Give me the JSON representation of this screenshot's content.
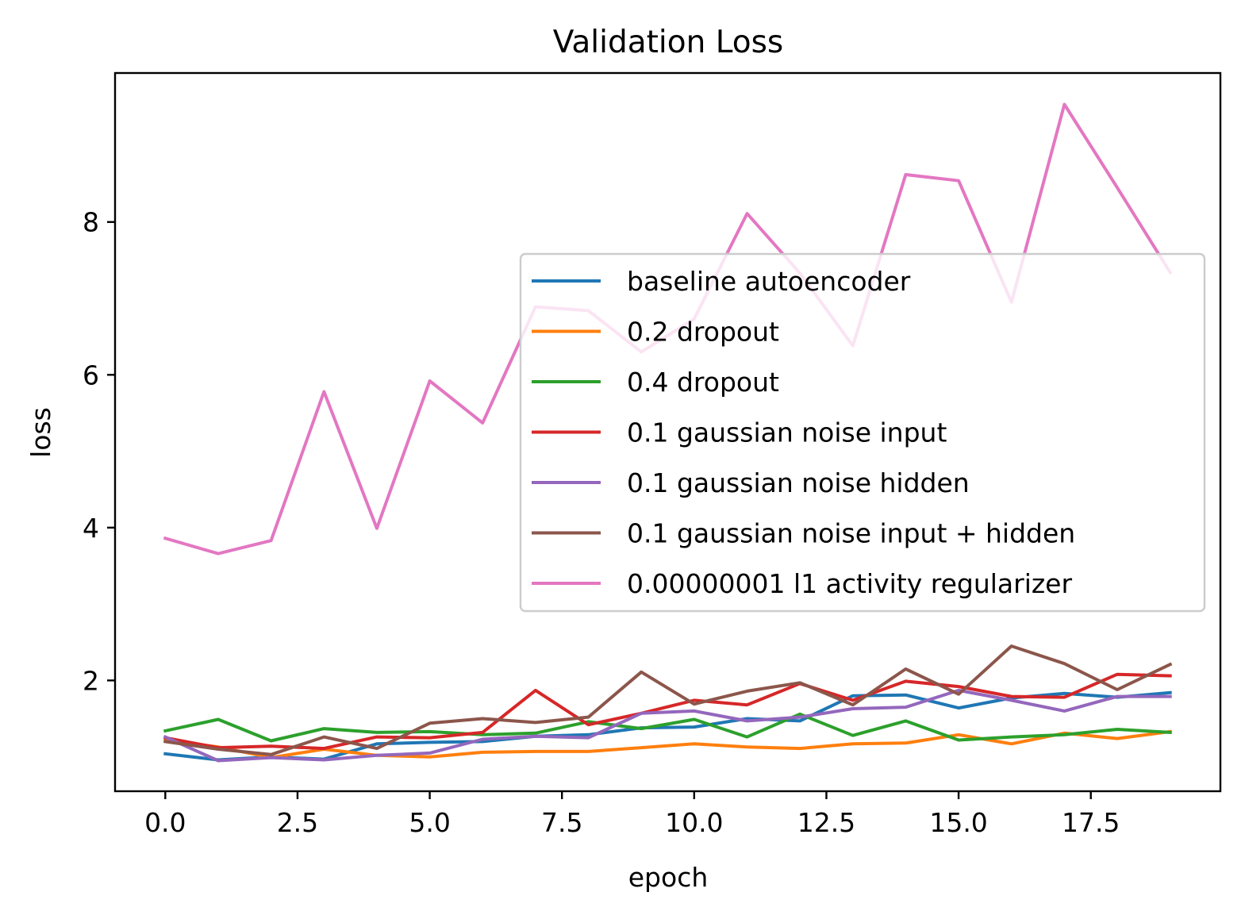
{
  "chart_data": {
    "type": "line",
    "title": "Validation Loss",
    "xlabel": "epoch",
    "ylabel": "loss",
    "xlim": [
      -0.95,
      19.95
    ],
    "ylim": [
      0.55,
      9.95
    ],
    "xticks": [
      0.0,
      2.5,
      5.0,
      7.5,
      10.0,
      12.5,
      15.0,
      17.5
    ],
    "xtick_labels": [
      "0.0",
      "2.5",
      "5.0",
      "7.5",
      "10.0",
      "12.5",
      "15.0",
      "17.5"
    ],
    "yticks": [
      2,
      4,
      6,
      8
    ],
    "ytick_labels": [
      "2",
      "4",
      "6",
      "8"
    ],
    "grid": false,
    "legend_position": "center-right",
    "x": [
      0,
      1,
      2,
      3,
      4,
      5,
      6,
      7,
      8,
      9,
      10,
      11,
      12,
      13,
      14,
      15,
      16,
      17,
      18,
      19
    ],
    "series": [
      {
        "name": "baseline autoencoder",
        "color": "#1f77b4",
        "values": [
          1.04,
          0.96,
          1.0,
          0.97,
          1.17,
          1.19,
          1.2,
          1.27,
          1.29,
          1.38,
          1.39,
          1.5,
          1.47,
          1.8,
          1.81,
          1.64,
          1.77,
          1.83,
          1.78,
          1.84
        ]
      },
      {
        "name": "0.2 dropout",
        "color": "#ff7f0e",
        "values": [
          1.22,
          1.13,
          0.99,
          1.1,
          1.02,
          1.0,
          1.06,
          1.07,
          1.07,
          1.12,
          1.17,
          1.13,
          1.11,
          1.17,
          1.18,
          1.29,
          1.17,
          1.31,
          1.24,
          1.33
        ]
      },
      {
        "name": "0.4 dropout",
        "color": "#2ca02c",
        "values": [
          1.34,
          1.49,
          1.21,
          1.37,
          1.32,
          1.33,
          1.29,
          1.31,
          1.46,
          1.37,
          1.49,
          1.26,
          1.56,
          1.28,
          1.47,
          1.22,
          1.26,
          1.29,
          1.36,
          1.32
        ]
      },
      {
        "name": "0.1 gaussian noise input",
        "color": "#d62728",
        "values": [
          1.25,
          1.12,
          1.14,
          1.11,
          1.26,
          1.25,
          1.32,
          1.87,
          1.42,
          1.57,
          1.74,
          1.68,
          1.96,
          1.74,
          1.99,
          1.92,
          1.79,
          1.78,
          2.08,
          2.06
        ]
      },
      {
        "name": "0.1 gaussian noise hidden",
        "color": "#9467bd",
        "values": [
          1.26,
          0.95,
          0.99,
          0.96,
          1.02,
          1.05,
          1.23,
          1.27,
          1.25,
          1.57,
          1.6,
          1.47,
          1.52,
          1.63,
          1.65,
          1.87,
          1.74,
          1.6,
          1.79,
          1.79
        ]
      },
      {
        "name": "0.1 gaussian noise input + hidden",
        "color": "#8c564b",
        "values": [
          1.2,
          1.1,
          1.03,
          1.26,
          1.11,
          1.44,
          1.5,
          1.45,
          1.52,
          2.11,
          1.69,
          1.86,
          1.97,
          1.68,
          2.15,
          1.82,
          2.45,
          2.22,
          1.88,
          2.21
        ]
      },
      {
        "name": "0.00000001 l1 activity regularizer",
        "color": "#e377c2",
        "values": [
          3.86,
          3.66,
          3.83,
          5.78,
          3.99,
          5.92,
          5.37,
          6.89,
          6.84,
          6.3,
          6.73,
          8.11,
          7.33,
          6.38,
          8.62,
          8.54,
          6.95,
          9.54,
          8.45,
          7.34
        ]
      }
    ]
  }
}
